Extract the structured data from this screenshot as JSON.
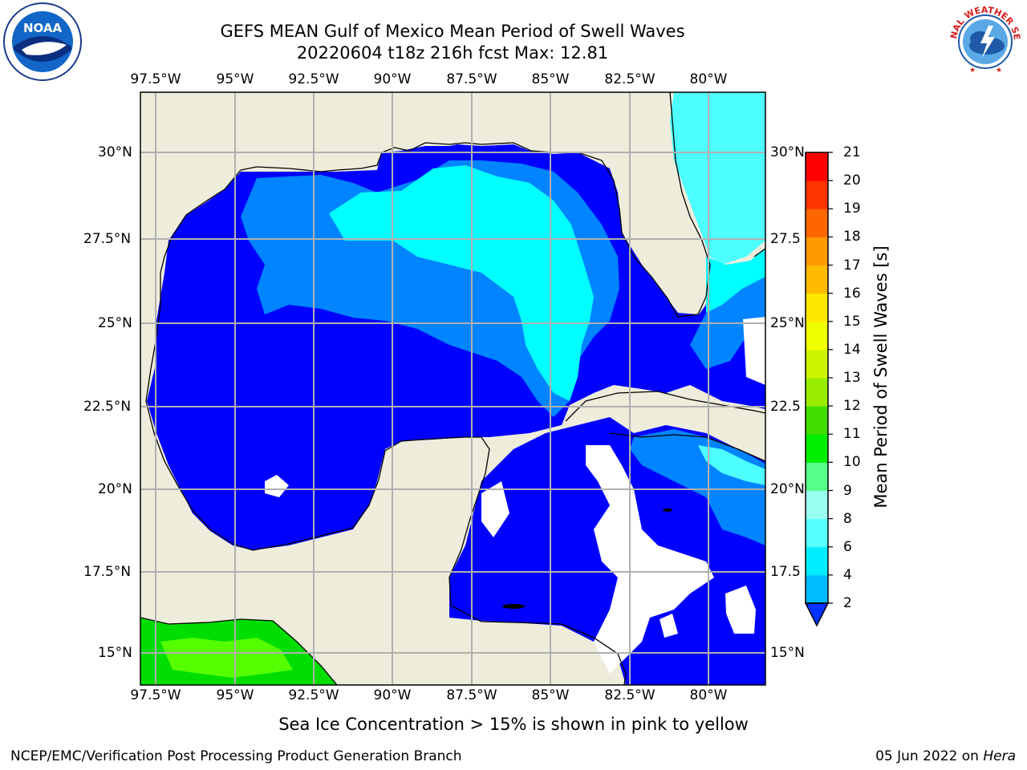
{
  "header": {
    "title_line1": "GEFS MEAN Gulf of Mexico Mean Period of Swell Waves",
    "title_line2": "20220604 t18z 216h fcst   Max: 12.81"
  },
  "map": {
    "lon_labels": [
      "97.5°W",
      "95°W",
      "92.5°W",
      "90°W",
      "87.5°W",
      "85°W",
      "82.5°W",
      "80°W"
    ],
    "lat_labels": [
      "30°N",
      "27.5°N",
      "25°N",
      "22.5°N",
      "20°N",
      "17.5°N",
      "15°N"
    ],
    "lat_labels_right": [
      "30°N",
      "27.5",
      "25°N",
      "22.5",
      "20°N",
      "17.5",
      "15°N"
    ],
    "colors": {
      "land": "#eeeddc",
      "ocean_2_4": "#0000ff",
      "ocean_4_6": "#0084ff",
      "ocean_6_8": "#00ffff",
      "ocean_8_10": "#4dffff",
      "green_dark": "#00dd00",
      "green_light": "#55ff00",
      "grid": "#b0b0b0"
    }
  },
  "colorbar": {
    "labels": [
      "2",
      "4",
      "6",
      "8",
      "9",
      "10",
      "11",
      "12",
      "13",
      "14",
      "15",
      "16",
      "17",
      "18",
      "19",
      "20",
      "21"
    ],
    "colors": [
      "#0033ff",
      "#00bbff",
      "#00eeff",
      "#55ffff",
      "#99ffee",
      "#55ff88",
      "#00ee00",
      "#44dd00",
      "#99ee00",
      "#ccf500",
      "#eeff00",
      "#ffe800",
      "#ffbb00",
      "#ff9900",
      "#ff6600",
      "#ff3300",
      "#ff0000"
    ],
    "title": "Mean Period of Swell Waves [s]"
  },
  "footer": {
    "note": "Sea Ice Concentration > 15% is shown in pink to yellow",
    "org": "NCEP/EMC/Verification Post Processing Product Generation Branch",
    "date": "05 Jun 2022 on ",
    "host": "Hera"
  },
  "logos": {
    "noaa_text": "NOAA",
    "nws_text": "NATIONAL WEATHER SERVICE"
  }
}
